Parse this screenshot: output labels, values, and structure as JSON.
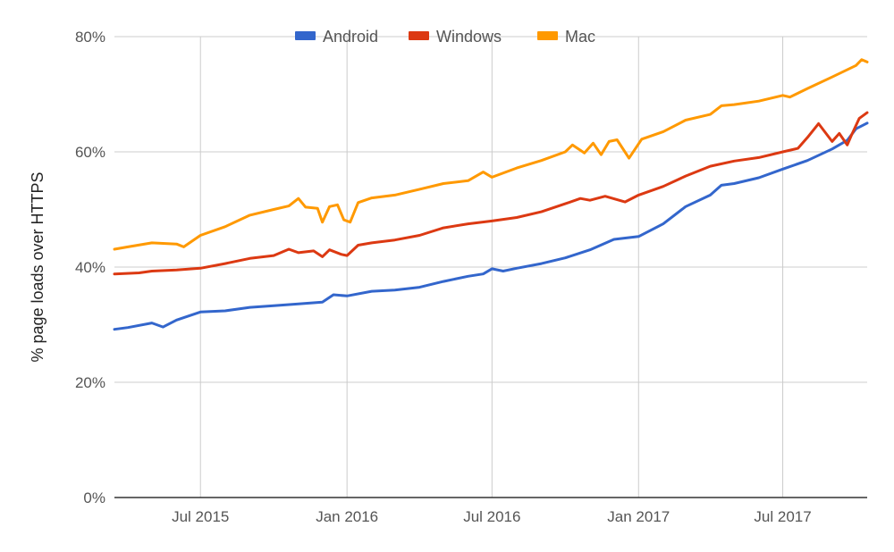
{
  "chart_data": {
    "type": "line",
    "title": "",
    "xlabel": "",
    "ylabel": "% page loads over HTTPS",
    "x_ticks": [
      "Jul 2015",
      "Jan 2016",
      "Jul 2016",
      "Jan 2017",
      "Jul 2017"
    ],
    "x_tick_dates": [
      "2015-07-01",
      "2016-01-01",
      "2016-07-01",
      "2017-01-01",
      "2017-07-01"
    ],
    "x_range": [
      "2015-03-15",
      "2017-10-15"
    ],
    "y_ticks": [
      "0%",
      "20%",
      "40%",
      "60%",
      "80%"
    ],
    "y_tick_values": [
      0,
      20,
      40,
      60,
      80
    ],
    "ylim": [
      0,
      80
    ],
    "grid": true,
    "legend_position": "top",
    "series": [
      {
        "name": "Android",
        "color": "#3366cc",
        "points": [
          [
            "2015-03-15",
            29.2
          ],
          [
            "2015-04-01",
            29.5
          ],
          [
            "2015-05-01",
            30.3
          ],
          [
            "2015-05-15",
            29.6
          ],
          [
            "2015-06-01",
            30.8
          ],
          [
            "2015-07-01",
            32.2
          ],
          [
            "2015-08-01",
            32.4
          ],
          [
            "2015-09-01",
            33.0
          ],
          [
            "2015-10-01",
            33.3
          ],
          [
            "2015-11-01",
            33.6
          ],
          [
            "2015-12-01",
            33.9
          ],
          [
            "2015-12-15",
            35.2
          ],
          [
            "2016-01-01",
            35.0
          ],
          [
            "2016-02-01",
            35.8
          ],
          [
            "2016-03-01",
            36.0
          ],
          [
            "2016-04-01",
            36.5
          ],
          [
            "2016-05-01",
            37.5
          ],
          [
            "2016-06-01",
            38.4
          ],
          [
            "2016-06-20",
            38.8
          ],
          [
            "2016-07-01",
            39.7
          ],
          [
            "2016-07-15",
            39.3
          ],
          [
            "2016-08-01",
            39.8
          ],
          [
            "2016-09-01",
            40.6
          ],
          [
            "2016-10-01",
            41.6
          ],
          [
            "2016-11-01",
            43.0
          ],
          [
            "2016-12-01",
            44.8
          ],
          [
            "2017-01-01",
            45.3
          ],
          [
            "2017-02-01",
            47.5
          ],
          [
            "2017-03-01",
            50.5
          ],
          [
            "2017-04-01",
            52.5
          ],
          [
            "2017-04-15",
            54.2
          ],
          [
            "2017-05-01",
            54.5
          ],
          [
            "2017-06-01",
            55.5
          ],
          [
            "2017-07-01",
            57.0
          ],
          [
            "2017-08-01",
            58.5
          ],
          [
            "2017-09-01",
            60.5
          ],
          [
            "2017-09-20",
            62.0
          ],
          [
            "2017-10-01",
            64.0
          ],
          [
            "2017-10-15",
            65.0
          ]
        ]
      },
      {
        "name": "Windows",
        "color": "#dc3912",
        "points": [
          [
            "2015-03-15",
            38.8
          ],
          [
            "2015-04-15",
            39.0
          ],
          [
            "2015-05-01",
            39.3
          ],
          [
            "2015-06-01",
            39.5
          ],
          [
            "2015-07-01",
            39.8
          ],
          [
            "2015-08-01",
            40.6
          ],
          [
            "2015-09-01",
            41.5
          ],
          [
            "2015-10-01",
            42.0
          ],
          [
            "2015-10-20",
            43.1
          ],
          [
            "2015-11-01",
            42.5
          ],
          [
            "2015-11-20",
            42.8
          ],
          [
            "2015-12-01",
            41.8
          ],
          [
            "2015-12-10",
            43.0
          ],
          [
            "2015-12-25",
            42.2
          ],
          [
            "2016-01-01",
            42.0
          ],
          [
            "2016-01-15",
            43.8
          ],
          [
            "2016-02-01",
            44.2
          ],
          [
            "2016-03-01",
            44.7
          ],
          [
            "2016-04-01",
            45.5
          ],
          [
            "2016-05-01",
            46.8
          ],
          [
            "2016-06-01",
            47.5
          ],
          [
            "2016-07-01",
            48.0
          ],
          [
            "2016-08-01",
            48.6
          ],
          [
            "2016-09-01",
            49.6
          ],
          [
            "2016-10-01",
            51.0
          ],
          [
            "2016-10-20",
            51.9
          ],
          [
            "2016-11-01",
            51.6
          ],
          [
            "2016-11-20",
            52.3
          ],
          [
            "2016-12-15",
            51.3
          ],
          [
            "2017-01-01",
            52.5
          ],
          [
            "2017-02-01",
            54.0
          ],
          [
            "2017-03-01",
            55.8
          ],
          [
            "2017-04-01",
            57.5
          ],
          [
            "2017-05-01",
            58.4
          ],
          [
            "2017-06-01",
            59.0
          ],
          [
            "2017-07-01",
            60.0
          ],
          [
            "2017-07-20",
            60.6
          ],
          [
            "2017-08-01",
            62.5
          ],
          [
            "2017-08-15",
            64.9
          ],
          [
            "2017-09-01",
            61.8
          ],
          [
            "2017-09-10",
            63.2
          ],
          [
            "2017-09-20",
            61.2
          ],
          [
            "2017-09-25",
            62.8
          ],
          [
            "2017-10-05",
            65.8
          ],
          [
            "2017-10-15",
            66.8
          ]
        ]
      },
      {
        "name": "Mac",
        "color": "#ff9900",
        "points": [
          [
            "2015-03-15",
            43.1
          ],
          [
            "2015-04-01",
            43.5
          ],
          [
            "2015-05-01",
            44.2
          ],
          [
            "2015-06-01",
            44.0
          ],
          [
            "2015-06-10",
            43.5
          ],
          [
            "2015-07-01",
            45.5
          ],
          [
            "2015-08-01",
            47.0
          ],
          [
            "2015-09-01",
            49.0
          ],
          [
            "2015-10-01",
            50.0
          ],
          [
            "2015-10-20",
            50.6
          ],
          [
            "2015-11-01",
            51.9
          ],
          [
            "2015-11-10",
            50.4
          ],
          [
            "2015-11-25",
            50.2
          ],
          [
            "2015-12-01",
            47.8
          ],
          [
            "2015-12-10",
            50.5
          ],
          [
            "2015-12-20",
            50.8
          ],
          [
            "2015-12-28",
            48.2
          ],
          [
            "2016-01-05",
            47.8
          ],
          [
            "2016-01-15",
            51.2
          ],
          [
            "2016-02-01",
            52.0
          ],
          [
            "2016-03-01",
            52.5
          ],
          [
            "2016-04-01",
            53.5
          ],
          [
            "2016-05-01",
            54.5
          ],
          [
            "2016-06-01",
            55.0
          ],
          [
            "2016-06-20",
            56.5
          ],
          [
            "2016-07-01",
            55.6
          ],
          [
            "2016-08-01",
            57.2
          ],
          [
            "2016-09-01",
            58.5
          ],
          [
            "2016-10-01",
            60.0
          ],
          [
            "2016-10-10",
            61.2
          ],
          [
            "2016-10-25",
            59.8
          ],
          [
            "2016-11-05",
            61.5
          ],
          [
            "2016-11-15",
            59.5
          ],
          [
            "2016-11-25",
            61.8
          ],
          [
            "2016-12-05",
            62.1
          ],
          [
            "2016-12-20",
            58.9
          ],
          [
            "2017-01-05",
            62.2
          ],
          [
            "2017-02-01",
            63.5
          ],
          [
            "2017-03-01",
            65.5
          ],
          [
            "2017-04-01",
            66.5
          ],
          [
            "2017-04-15",
            68.0
          ],
          [
            "2017-05-01",
            68.2
          ],
          [
            "2017-06-01",
            68.8
          ],
          [
            "2017-07-01",
            69.8
          ],
          [
            "2017-07-10",
            69.5
          ],
          [
            "2017-08-01",
            71.0
          ],
          [
            "2017-09-01",
            73.0
          ],
          [
            "2017-10-01",
            75.0
          ],
          [
            "2017-10-08",
            76.0
          ],
          [
            "2017-10-15",
            75.6
          ]
        ]
      }
    ]
  }
}
